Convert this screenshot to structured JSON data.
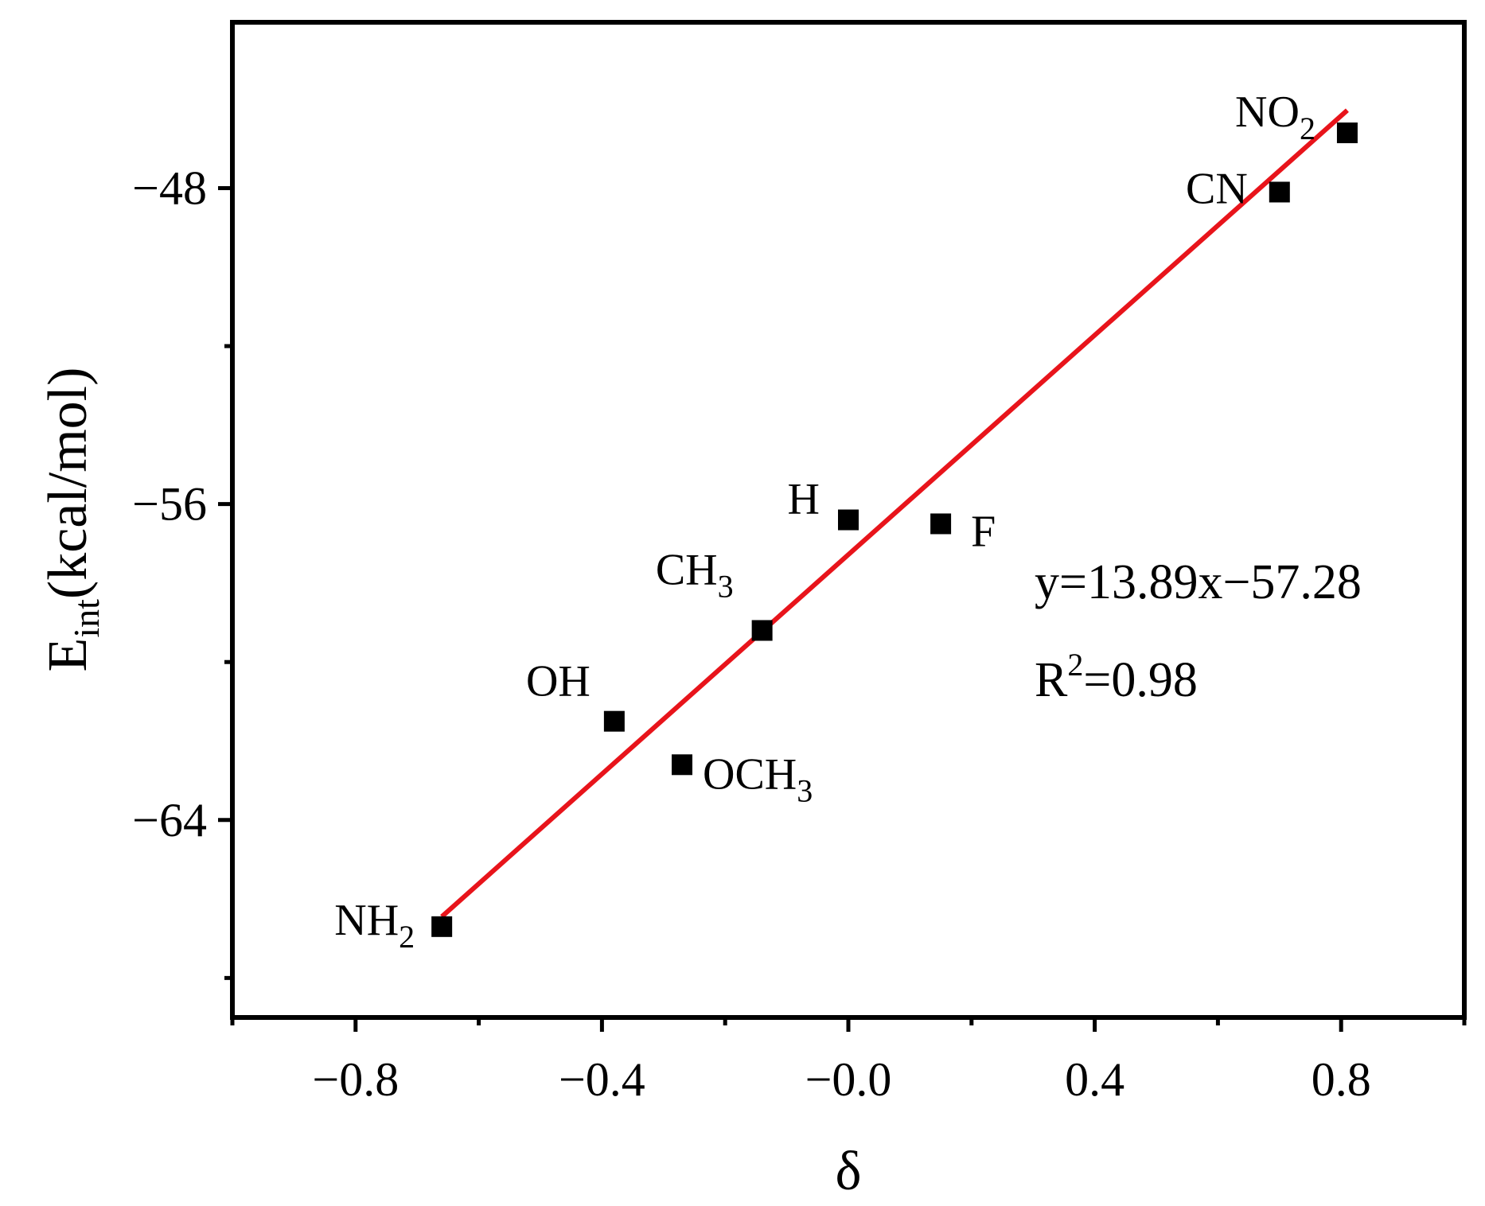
{
  "chart_data": {
    "type": "scatter",
    "title": "",
    "xlabel": "δ",
    "ylabel_main": "E",
    "ylabel_sub": "int",
    "ylabel_rest": "(kcal/mol)",
    "xlim": [
      -1.0,
      1.0
    ],
    "ylim": [
      -69.0,
      -43.8
    ],
    "x_ticks": [
      -0.8,
      -0.4,
      0.0,
      0.4,
      0.8
    ],
    "x_tick_labels": [
      "−0.8",
      "−0.4",
      "−0.0",
      "0.4",
      "0.8"
    ],
    "x_minor_ticks": [
      -1.0,
      -0.6,
      -0.2,
      0.2,
      0.6,
      1.0
    ],
    "y_ticks": [
      -48,
      -56,
      -64
    ],
    "y_tick_labels": [
      "−48",
      "−56",
      "−64"
    ],
    "y_minor_ticks": [
      -52,
      -60,
      -68
    ],
    "marker_color": "#000000",
    "fit_color": "#e8141b",
    "points": [
      {
        "x": 0.81,
        "y": -46.6,
        "label": "NO",
        "sub": "2"
      },
      {
        "x": 0.7,
        "y": -48.1,
        "label": "CN",
        "sub": ""
      },
      {
        "x": 0.0,
        "y": -56.4,
        "label": "H",
        "sub": ""
      },
      {
        "x": 0.15,
        "y": -56.5,
        "label": "F",
        "sub": ""
      },
      {
        "x": -0.14,
        "y": -59.2,
        "label": "CH",
        "sub": "3"
      },
      {
        "x": -0.38,
        "y": -61.5,
        "label": "OH",
        "sub": ""
      },
      {
        "x": -0.27,
        "y": -62.6,
        "label": "OCH",
        "sub": "3"
      },
      {
        "x": -0.66,
        "y": -66.7,
        "label": "NH",
        "sub": "2"
      }
    ],
    "fit": {
      "slope": 13.89,
      "intercept": -57.28,
      "x_range": [
        -0.66,
        0.81
      ]
    },
    "equation_line1": "y=13.89x−57.28",
    "equation_line2_main": "R",
    "equation_line2_sup": "2",
    "equation_line2_rest": "=0.98"
  }
}
